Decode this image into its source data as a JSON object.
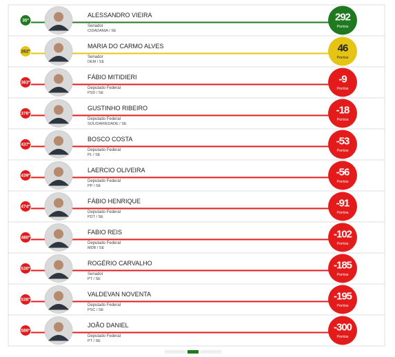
{
  "ranking": {
    "score_unit": "Pontos",
    "rows": [
      {
        "rank": "35º",
        "name": "ALESSANDRO VIEIRA",
        "role": "Senador",
        "party": "CIDADANIA / SE",
        "score": 292,
        "color": "#1f7a1f"
      },
      {
        "rank": "262º",
        "name": "MARIA DO CARMO ALVES",
        "role": "Senador",
        "party": "DEM / SE",
        "score": 46,
        "color": "#e6c414"
      },
      {
        "rank": "363º",
        "name": "FÁBIO MITIDIERI",
        "role": "Deputado Federal",
        "party": "PSD / SE",
        "score": -9,
        "color": "#e31b1b"
      },
      {
        "rank": "376º",
        "name": "GUSTINHO RIBEIRO",
        "role": "Deputado Federal",
        "party": "SOLIDARIEDADE / SE",
        "score": -18,
        "color": "#e31b1b"
      },
      {
        "rank": "437º",
        "name": "BOSCO COSTA",
        "role": "Deputado Federal",
        "party": "PL / SE",
        "score": -53,
        "color": "#e31b1b"
      },
      {
        "rank": "439º",
        "name": "LAERCIO OLIVEIRA",
        "role": "Deputado Federal",
        "party": "PP / SE",
        "score": -56,
        "color": "#e31b1b"
      },
      {
        "rank": "474º",
        "name": "FÁBIO HENRIQUE",
        "role": "Deputado Federal",
        "party": "PDT / SE",
        "score": -91,
        "color": "#e31b1b"
      },
      {
        "rank": "480º",
        "name": "FABIO REIS",
        "role": "Deputado Federal",
        "party": "MDB / SE",
        "score": -102,
        "color": "#e31b1b"
      },
      {
        "rank": "530º",
        "name": "ROGÉRIO CARVALHO",
        "role": "Senador",
        "party": "PT / SE",
        "score": -185,
        "color": "#e31b1b"
      },
      {
        "rank": "536º",
        "name": "VALDEVAN NOVENTA",
        "role": "Deputado Federal",
        "party": "PSC / SE",
        "score": -195,
        "color": "#e31b1b"
      },
      {
        "rank": "586º",
        "name": "JOÃO DANIEL",
        "role": "Deputado Federal",
        "party": "PT / SE",
        "score": -300,
        "color": "#e31b1b"
      }
    ]
  }
}
